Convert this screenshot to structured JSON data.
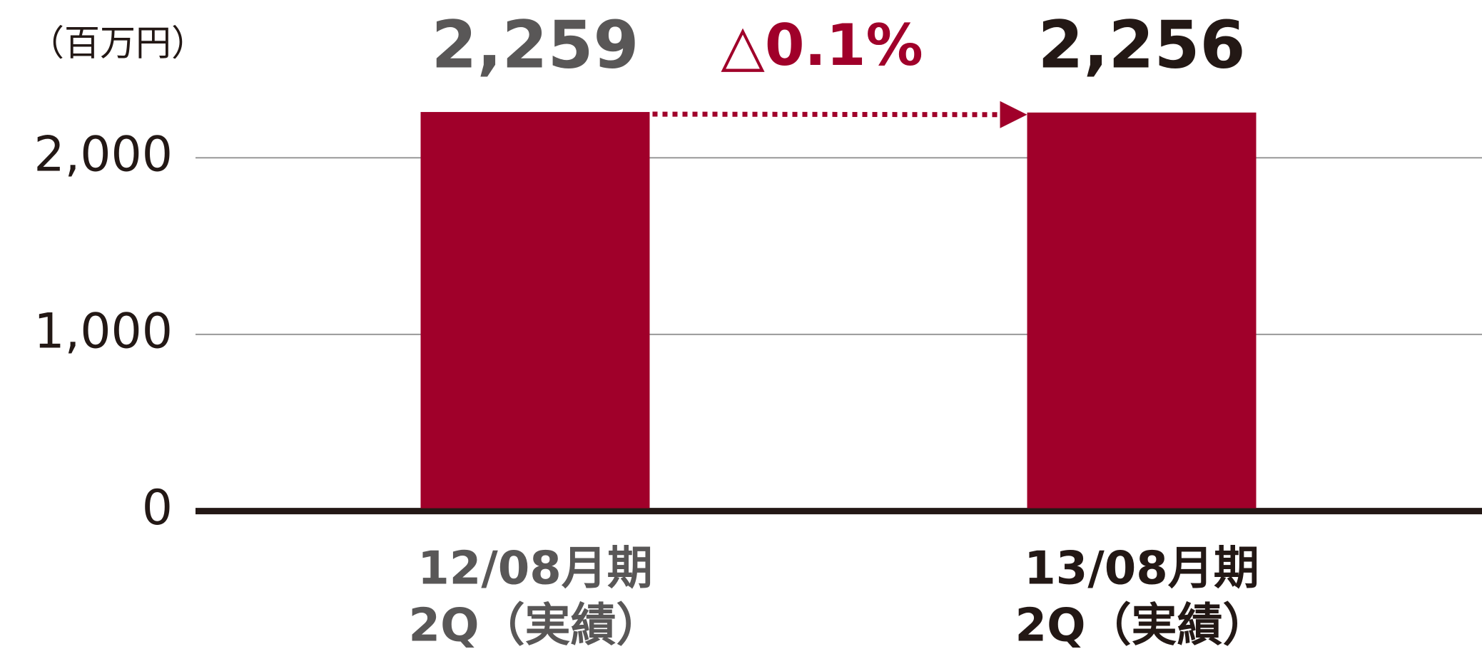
{
  "chart_data": {
    "type": "bar",
    "unit_label": "（百万円）",
    "categories": [
      [
        "12/08月期",
        "2Q（実績）"
      ],
      [
        "13/08月期",
        "2Q（実績）"
      ]
    ],
    "values": [
      2259,
      2256
    ],
    "value_labels": [
      "2,259",
      "2,256"
    ],
    "value_label_colors": [
      "#595757",
      "#231815"
    ],
    "color": "#a0002a",
    "category_label_colors": [
      "#595757",
      "#231815"
    ],
    "annotation": "△0.1%",
    "annotation_color": "#a0002a",
    "ylim": [
      0,
      2000
    ],
    "yticks": [
      0,
      {
        "value": 1000,
        "label": "1,000"
      },
      {
        "value": 2000,
        "label": "2,000"
      }
    ],
    "grid": true
  }
}
